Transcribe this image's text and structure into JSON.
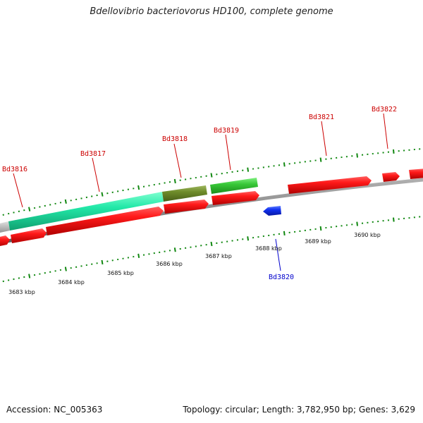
{
  "title": "Bdellovibrio bacteriovorus HD100, complete genome",
  "footer": {
    "accession": "Accession: NC_005363",
    "summary": "Topology: circular; Length: 3,782,950 bp; Genes: 3,629"
  },
  "colors": {
    "gene_label_forward": "#cc0000",
    "gene_label_reverse": "#0000cc",
    "cds_red": "#e01010",
    "cds_blue": "#1030e0",
    "rna_teal": "#22e0a0",
    "rna_green": "#30c030",
    "olive": "#6a8a28",
    "grey": "#bbbbbb",
    "ticks": "#118811"
  },
  "gene_labels": [
    {
      "id": "Bd3816",
      "strand": "forward"
    },
    {
      "id": "Bd3817",
      "strand": "forward"
    },
    {
      "id": "Bd3818",
      "strand": "forward"
    },
    {
      "id": "Bd3819",
      "strand": "forward"
    },
    {
      "id": "Bd3821",
      "strand": "forward"
    },
    {
      "id": "Bd3822",
      "strand": "forward"
    },
    {
      "id": "Bd3820",
      "strand": "reverse"
    }
  ],
  "scale_labels": [
    "3683 kbp",
    "3684 kbp",
    "3685 kbp",
    "3686 kbp",
    "3687 kbp",
    "3688 kbp",
    "3689 kbp",
    "3690 kbp"
  ]
}
